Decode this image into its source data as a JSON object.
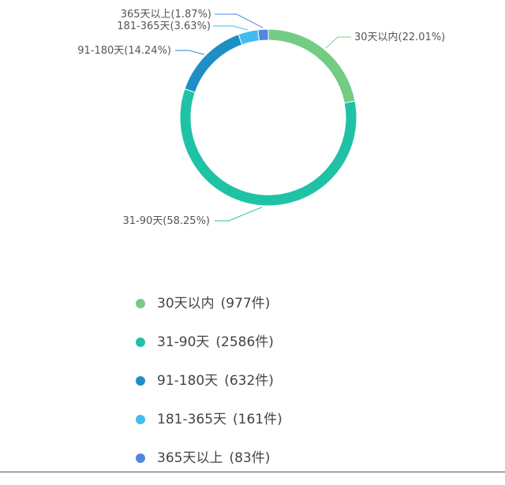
{
  "chart_data": {
    "type": "pie",
    "variant": "donut",
    "categories": [
      "30天以内",
      "31-90天",
      "91-180天",
      "181-365天",
      "365天以上"
    ],
    "values": [
      977,
      2586,
      632,
      161,
      83
    ],
    "percent_labels": [
      "30天以内(22.01%)",
      "31-90天(58.25%)",
      "91-180天(14.24%)",
      "181-365天(3.63%)",
      "365天以上(1.87%)"
    ],
    "legend_counts": [
      "(977件)",
      "(2586件)",
      "(632件)",
      "(161件)",
      "(83件)"
    ],
    "colors": [
      "#74cb84",
      "#20c2a6",
      "#1e8fc5",
      "#42bcee",
      "#4f86e0"
    ],
    "legend_position": "bottom",
    "start_angle_deg": 0,
    "direction": "clockwise",
    "title": "",
    "xlabel": "",
    "ylabel": ""
  }
}
